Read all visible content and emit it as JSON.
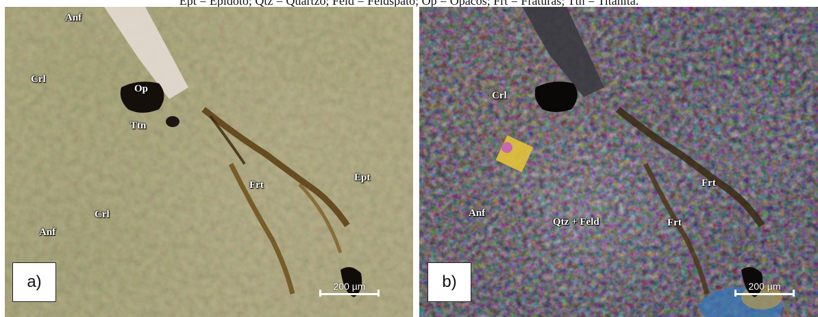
{
  "caption": "Ept = Epidoto; Qtz = Quartzo; Feld = Feldspato; Op = Opacos; Frt = Fraturas; Ttn = Titanita.",
  "panel_a": {
    "label": "a)",
    "scalebar": "200 µm",
    "minerals": {
      "anf_top": "Anf",
      "crl_top": "Crl",
      "op": "Op",
      "ttn": "Ttn",
      "frt": "Frt",
      "ept": "Ept",
      "crl_bottom": "Crl",
      "anf_bottom": "Anf"
    }
  },
  "panel_b": {
    "label": "b)",
    "scalebar": "200 µm",
    "minerals": {
      "crl": "Crl",
      "frt_right": "Frt",
      "anf": "Anf",
      "qtz_feld": "Qtz + Feld",
      "frt_center": "Frt"
    }
  }
}
